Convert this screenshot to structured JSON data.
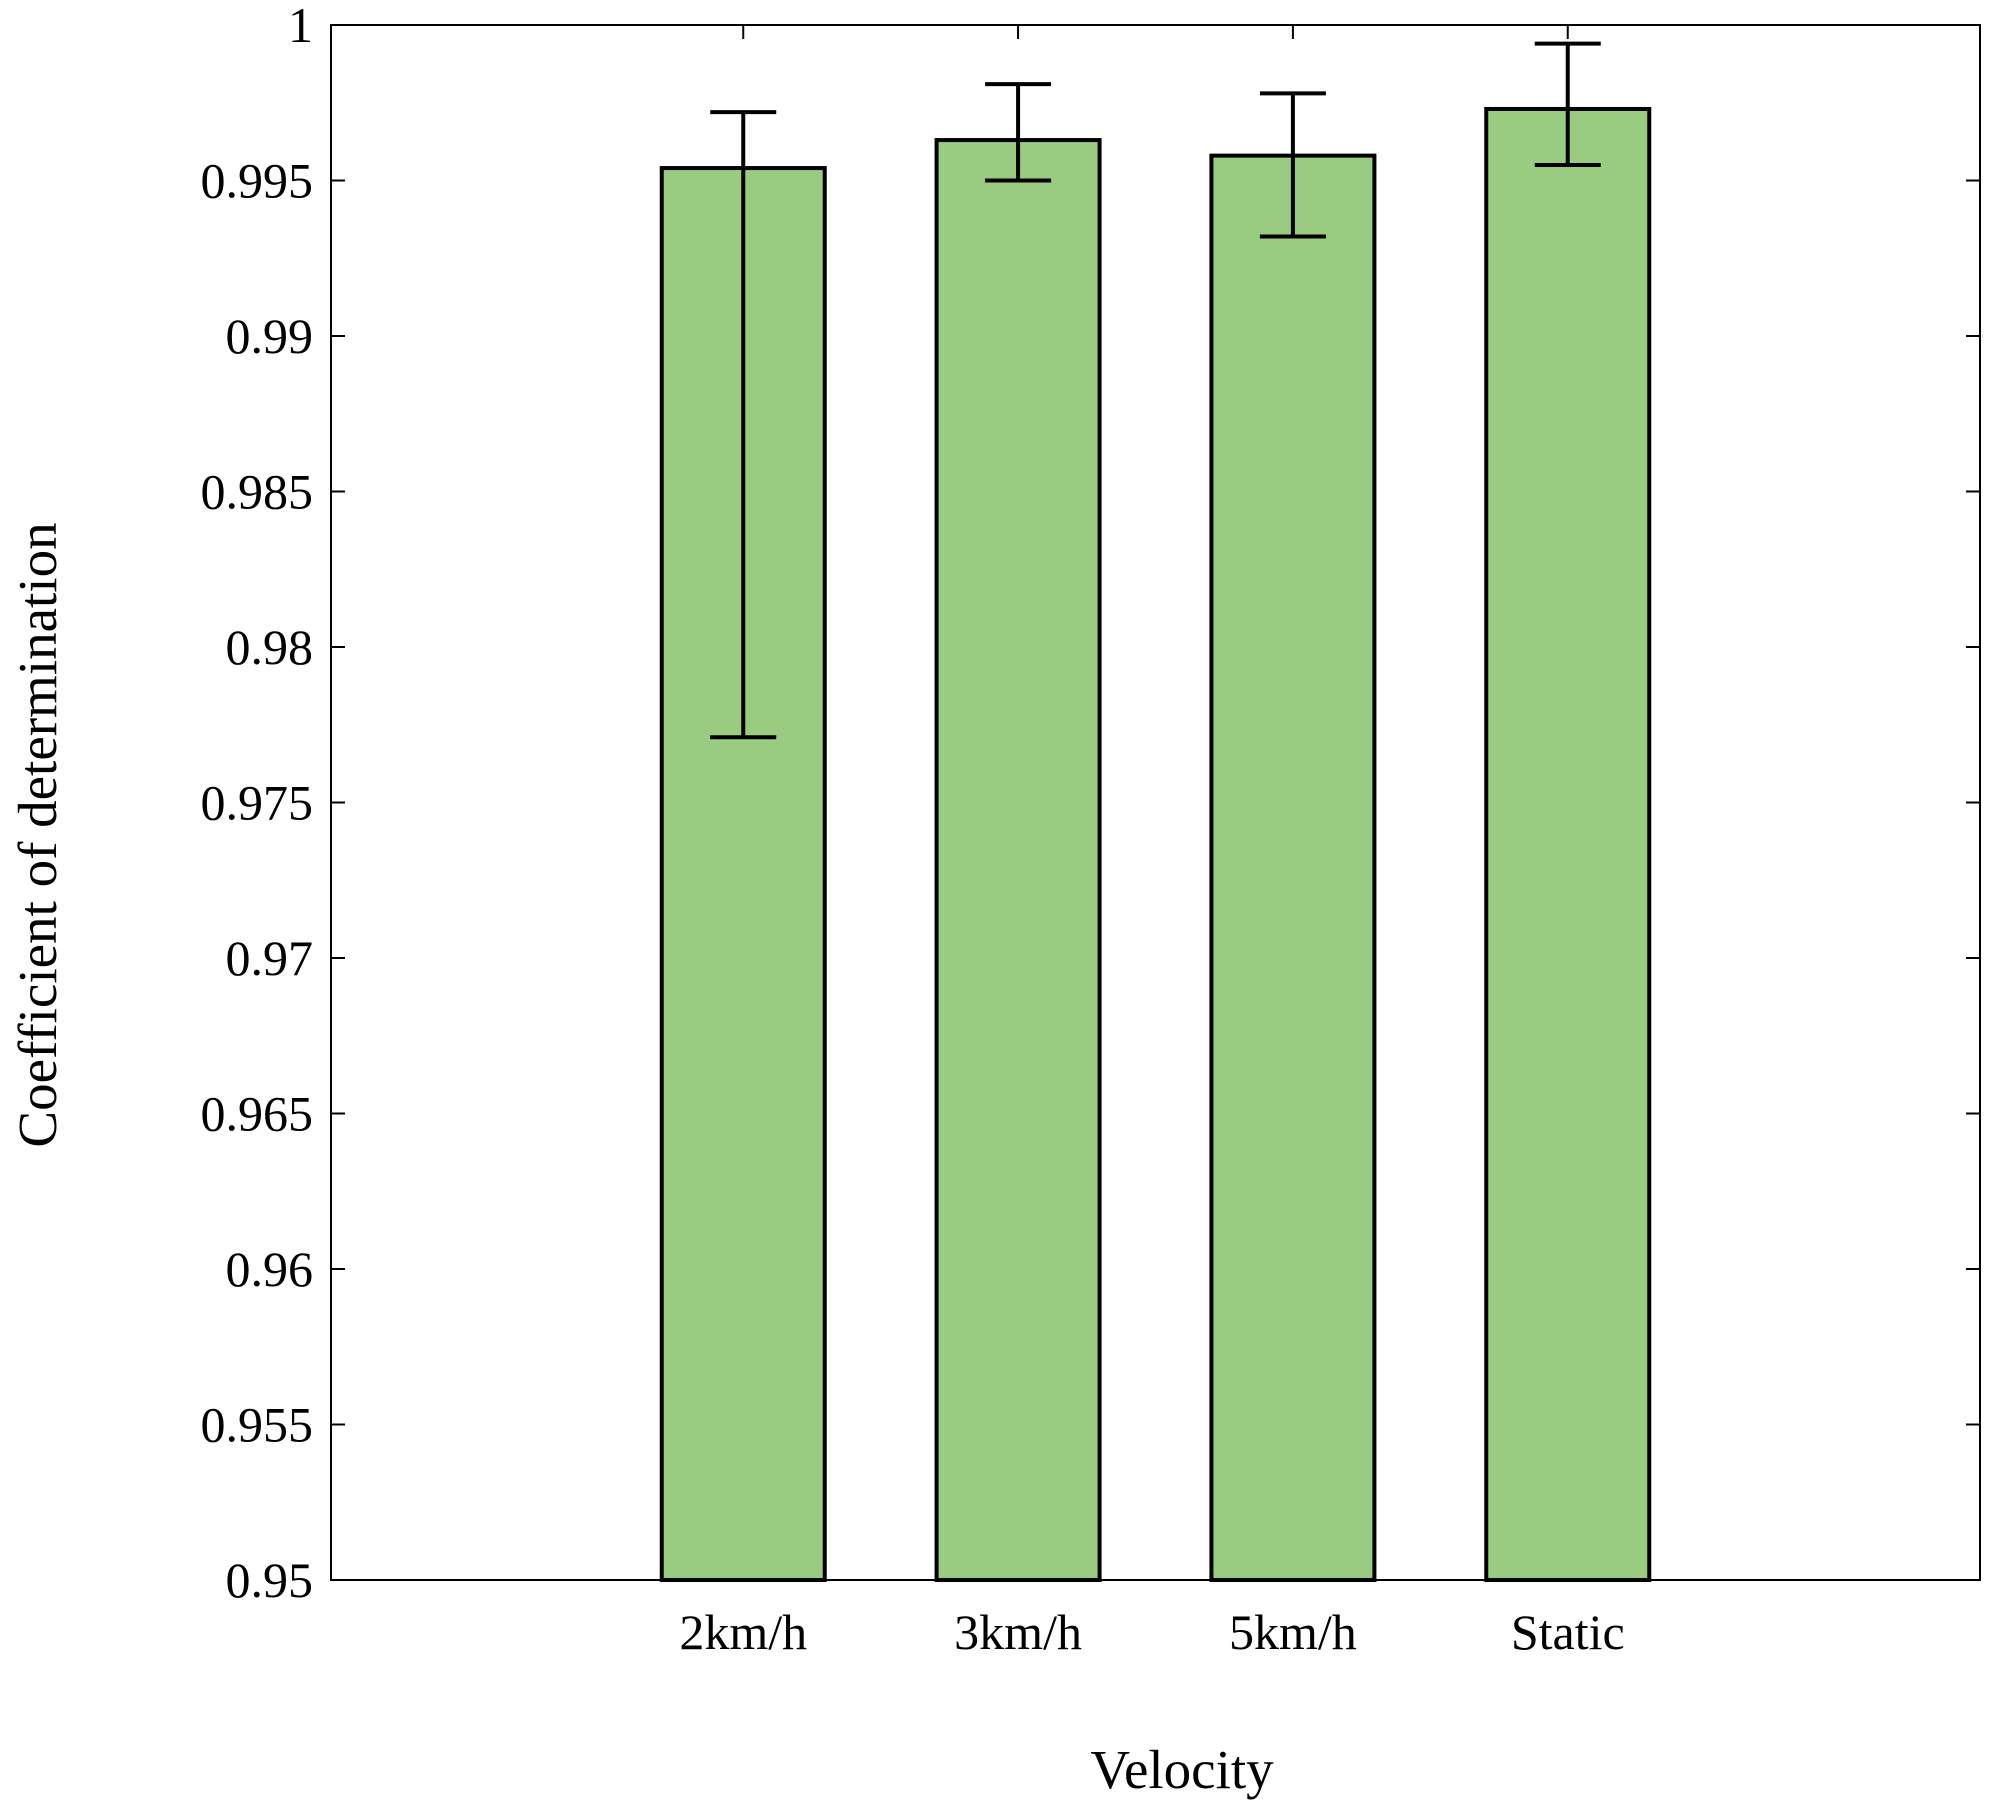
{
  "chart_data": {
    "type": "bar",
    "title": "",
    "xlabel": "Velocity",
    "ylabel": "Coefficient of determination",
    "categories": [
      "2km/h",
      "3km/h",
      "5km/h",
      "Static"
    ],
    "values": [
      0.9954,
      0.9963,
      0.9958,
      0.9973
    ],
    "error_low": [
      0.9771,
      0.995,
      0.9932,
      0.9955
    ],
    "error_high": [
      0.9972,
      0.9981,
      0.9978,
      0.9994
    ],
    "ylim": [
      0.95,
      1.0
    ],
    "yticks": [
      0.95,
      0.955,
      0.96,
      0.965,
      0.97,
      0.975,
      0.98,
      0.985,
      0.99,
      0.995,
      1
    ],
    "ytick_labels": [
      "0.95",
      "0.955",
      "0.96",
      "0.965",
      "0.97",
      "0.975",
      "0.98",
      "0.985",
      "0.99",
      "0.995",
      "1"
    ],
    "grid": false,
    "colors": {
      "bar_fill": "#99cc80",
      "bar_edge": "#000000",
      "errorbar": "#000000",
      "axis": "#000000"
    }
  }
}
